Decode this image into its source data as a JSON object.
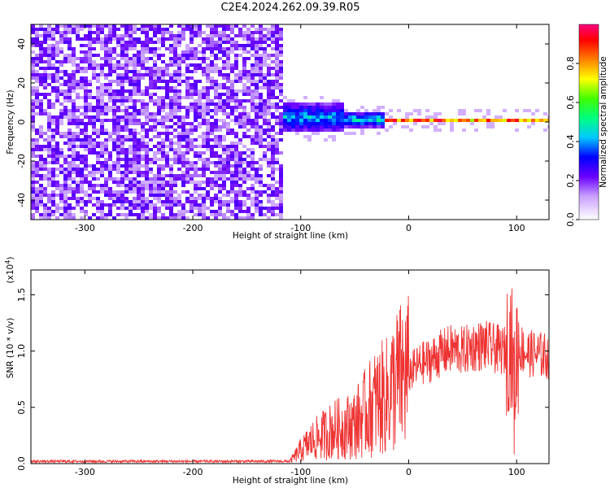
{
  "title": "C2E4.2024.262.09.39.R05",
  "chart_data": [
    {
      "type": "heatmap",
      "title": "C2E4.2024.262.09.39.R05",
      "xlabel": "Height of straight line (km)",
      "ylabel": "Frequency (Hz)",
      "xlim": [
        -350,
        130
      ],
      "ylim": [
        -50,
        50
      ],
      "x_ticks": [
        -300,
        -200,
        -100,
        0,
        100
      ],
      "x_tick_labels": [
        "-300",
        "-200",
        "-100",
        "0",
        "100"
      ],
      "y_ticks": [
        -40,
        -20,
        0,
        20,
        40
      ],
      "y_tick_labels": [
        "-40",
        "-20",
        "0",
        "20",
        "40"
      ],
      "colorbar": {
        "label": "Normalized spectral amplitude",
        "range": [
          0,
          1
        ],
        "ticks": [
          0.0,
          0.2,
          0.4,
          0.6,
          0.8
        ],
        "tick_labels": [
          "0.0",
          "0.2",
          "0.4",
          "0.6",
          "0.8"
        ]
      },
      "regions": [
        {
          "x_range": [
            -350,
            -118
          ],
          "freq_range": [
            -50,
            50
          ],
          "amplitude": 0.05,
          "description_type": "broadband noise"
        },
        {
          "x_range": [
            -118,
            -60
          ],
          "freq_center": 3,
          "freq_halfwidth": 8,
          "amplitude": 0.45
        },
        {
          "x_range": [
            -60,
            -25
          ],
          "freq_center": 2,
          "freq_halfwidth": 4,
          "amplitude": 0.5
        },
        {
          "x_range": [
            -25,
            130
          ],
          "freq_center": 1.5,
          "freq_halfwidth": 1.5,
          "amplitude": 0.95
        }
      ]
    },
    {
      "type": "line",
      "xlabel": "Height of straight line (km)",
      "ylabel": "SNR (10 * v/v)",
      "y_multiplier": "(x10",
      "y_multiplier_exp": "4",
      "y_multiplier_close": ")",
      "xlim": [
        -350,
        130
      ],
      "ylim": [
        0,
        1.72
      ],
      "x_ticks": [
        -300,
        -200,
        -100,
        0,
        100
      ],
      "x_tick_labels": [
        "-300",
        "-200",
        "-100",
        "0",
        "100"
      ],
      "y_ticks": [
        0.0,
        0.5,
        1.0,
        1.5
      ],
      "y_tick_labels": [
        "0.0",
        "0.5",
        "1.0",
        "1.5"
      ],
      "line_color": "#ee3333",
      "series": [
        {
          "x": [
            -350,
            -300,
            -250,
            -200,
            -150,
            -110,
            -100,
            -90,
            -80,
            -70,
            -60,
            -50,
            -40,
            -30,
            -20,
            -10,
            0,
            10,
            20,
            30,
            40,
            50,
            60,
            70,
            80,
            90,
            95,
            98,
            100,
            105,
            110,
            120,
            130
          ],
          "y": [
            0.02,
            0.02,
            0.02,
            0.02,
            0.02,
            0.02,
            0.12,
            0.2,
            0.25,
            0.3,
            0.32,
            0.35,
            0.45,
            0.55,
            0.6,
            0.75,
            0.8,
            0.88,
            0.92,
            0.98,
            1.02,
            1.0,
            1.04,
            1.05,
            1.02,
            1.0,
            1.1,
            0.6,
            1.0,
            1.02,
            0.98,
            0.97,
            0.95
          ]
        }
      ]
    }
  ]
}
